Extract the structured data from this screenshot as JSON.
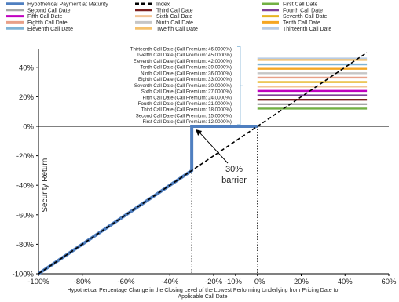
{
  "chart_data": {
    "type": "line",
    "title": "",
    "xlabel": "Hypothetical Percentage Change in the Closing Level of the Lowest Performing Underlying from Pricing Date to Applicable Call Date",
    "ylabel": "Security Return",
    "xlim": [
      -100,
      60
    ],
    "ylim": [
      -100,
      50
    ],
    "x_ticks": [
      "-100%",
      "-80%",
      "-60%",
      "-40%",
      "-20%",
      "-10%",
      "0%",
      "20%",
      "40%",
      "60%"
    ],
    "x_tick_values": [
      -100,
      -80,
      -60,
      -40,
      -20,
      -10,
      0,
      20,
      40,
      60
    ],
    "y_ticks": [
      "-100%",
      "-80%",
      "-60%",
      "-40%",
      "-20%",
      "0%",
      "20%",
      "40%"
    ],
    "y_tick_values": [
      -100,
      -80,
      -60,
      -40,
      -20,
      0,
      20,
      40
    ],
    "legend": [
      {
        "label": "Hypothetical Payment at Maturity",
        "color": "#4f7fc0",
        "style": "thick"
      },
      {
        "label": "Index",
        "color": "#000000",
        "style": "dash"
      },
      {
        "label": "First Call Date",
        "color": "#72b043"
      },
      {
        "label": "Second Call Date",
        "color": "#a6a6a6"
      },
      {
        "label": "Third Call Date",
        "color": "#7b1e1e"
      },
      {
        "label": "Fourth Call Date",
        "color": "#7f3f97"
      },
      {
        "label": "Fifth Call Date",
        "color": "#c000c0"
      },
      {
        "label": "Sixth Call Date",
        "color": "#f2c496"
      },
      {
        "label": "Seventh Call Date",
        "color": "#e6b422"
      },
      {
        "label": "Eighth Call Date",
        "color": "#e8a088"
      },
      {
        "label": "Ninth Call Date",
        "color": "#c6c6c6"
      },
      {
        "label": "Tenth Call Date",
        "color": "#f5a623"
      },
      {
        "label": "Eleventh Call Date",
        "color": "#7fb3d5"
      },
      {
        "label": "Twelfth Call Date",
        "color": "#f5c16c"
      },
      {
        "label": "Thirteenth Call Date",
        "color": "#b9cce4"
      }
    ],
    "series": [
      {
        "name": "Hypothetical Payment at Maturity",
        "x": [
          -100,
          -30,
          -30,
          0
        ],
        "y": [
          -100,
          -30,
          0,
          0
        ]
      },
      {
        "name": "Index",
        "x": [
          -100,
          50
        ],
        "y": [
          -100,
          50
        ]
      }
    ],
    "call_premiums": [
      {
        "label": "Thirteenth Call Date (Call Premium: 46.0000%)",
        "value": 46.0,
        "color": "#b9cce4"
      },
      {
        "label": "Twelfth Call Date (Call Premium: 45.0000%)",
        "value": 45.0,
        "color": "#f5c16c"
      },
      {
        "label": "Eleventh Call Date (Call Premium: 42.0000%)",
        "value": 42.0,
        "color": "#7fb3d5"
      },
      {
        "label": "Tenth Call Date (Call Premium: 39.0000%)",
        "value": 39.0,
        "color": "#f5a623"
      },
      {
        "label": "Ninth Call Date (Call Premium: 36.0000%)",
        "value": 36.0,
        "color": "#c6c6c6"
      },
      {
        "label": "Eighth Call Date (Call Premium: 33.0000%)",
        "value": 33.0,
        "color": "#e8a088"
      },
      {
        "label": "Seventh Call Date (Call Premium: 30.0000%)",
        "value": 30.0,
        "color": "#e6b422"
      },
      {
        "label": "Sixth Call Date (Call Premium: 27.0000%)",
        "value": 27.0,
        "color": "#f2c496"
      },
      {
        "label": "Fifth Call Date (Call Premium: 24.0000%)",
        "value": 24.0,
        "color": "#c000c0"
      },
      {
        "label": "Fourth Call Date (Call Premium: 21.0000%)",
        "value": 21.0,
        "color": "#7f3f97"
      },
      {
        "label": "Third Call Date (Call Premium: 18.0000%)",
        "value": 18.0,
        "color": "#7b1e1e"
      },
      {
        "label": "Second Call Date (Call Premium: 15.0000%)",
        "value": 15.0,
        "color": "#a6a6a6"
      },
      {
        "label": "First Call Date (Call Premium: 12.0000%)",
        "value": 12.0,
        "color": "#72b043"
      }
    ],
    "premium_x_range": [
      0,
      50
    ],
    "barrier": {
      "x": -30,
      "label_line1": "30%",
      "label_line2": "barrier"
    },
    "reference_lines_x": [
      -30,
      0
    ],
    "grid": false,
    "legend_position": "top"
  }
}
